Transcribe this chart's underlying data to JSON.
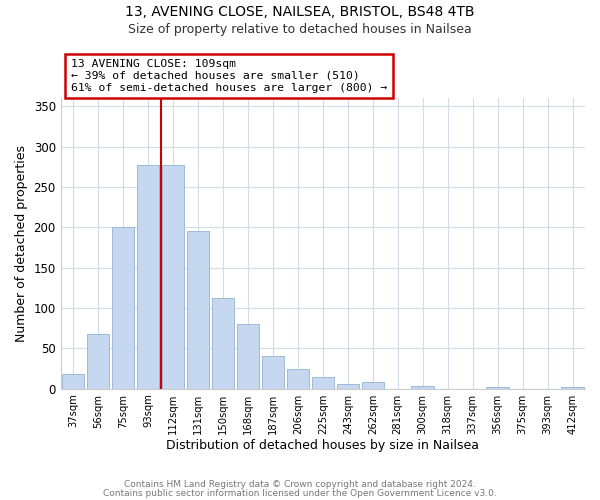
{
  "title1": "13, AVENING CLOSE, NAILSEA, BRISTOL, BS48 4TB",
  "title2": "Size of property relative to detached houses in Nailsea",
  "xlabel": "Distribution of detached houses by size in Nailsea",
  "ylabel": "Number of detached properties",
  "categories": [
    "37sqm",
    "56sqm",
    "75sqm",
    "93sqm",
    "112sqm",
    "131sqm",
    "150sqm",
    "168sqm",
    "187sqm",
    "206sqm",
    "225sqm",
    "243sqm",
    "262sqm",
    "281sqm",
    "300sqm",
    "318sqm",
    "337sqm",
    "356sqm",
    "375sqm",
    "393sqm",
    "412sqm"
  ],
  "values": [
    18,
    68,
    200,
    278,
    278,
    195,
    113,
    80,
    40,
    25,
    14,
    6,
    8,
    0,
    3,
    0,
    0,
    2,
    0,
    0,
    2
  ],
  "bar_color": "#c5d8f0",
  "bar_edge_color": "#a0b8d8",
  "vline_x": 3.5,
  "vline_color": "#cc0000",
  "annotation_text": "13 AVENING CLOSE: 109sqm\n← 39% of detached houses are smaller (510)\n61% of semi-detached houses are larger (800) →",
  "annotation_box_color": "#ffffff",
  "annotation_box_edge": "#cc0000",
  "ylim": [
    0,
    360
  ],
  "yticks": [
    0,
    50,
    100,
    150,
    200,
    250,
    300,
    350
  ],
  "footer1": "Contains HM Land Registry data © Crown copyright and database right 2024.",
  "footer2": "Contains public sector information licensed under the Open Government Licence v3.0.",
  "bg_color": "#ffffff",
  "grid_color": "#d0dce8"
}
